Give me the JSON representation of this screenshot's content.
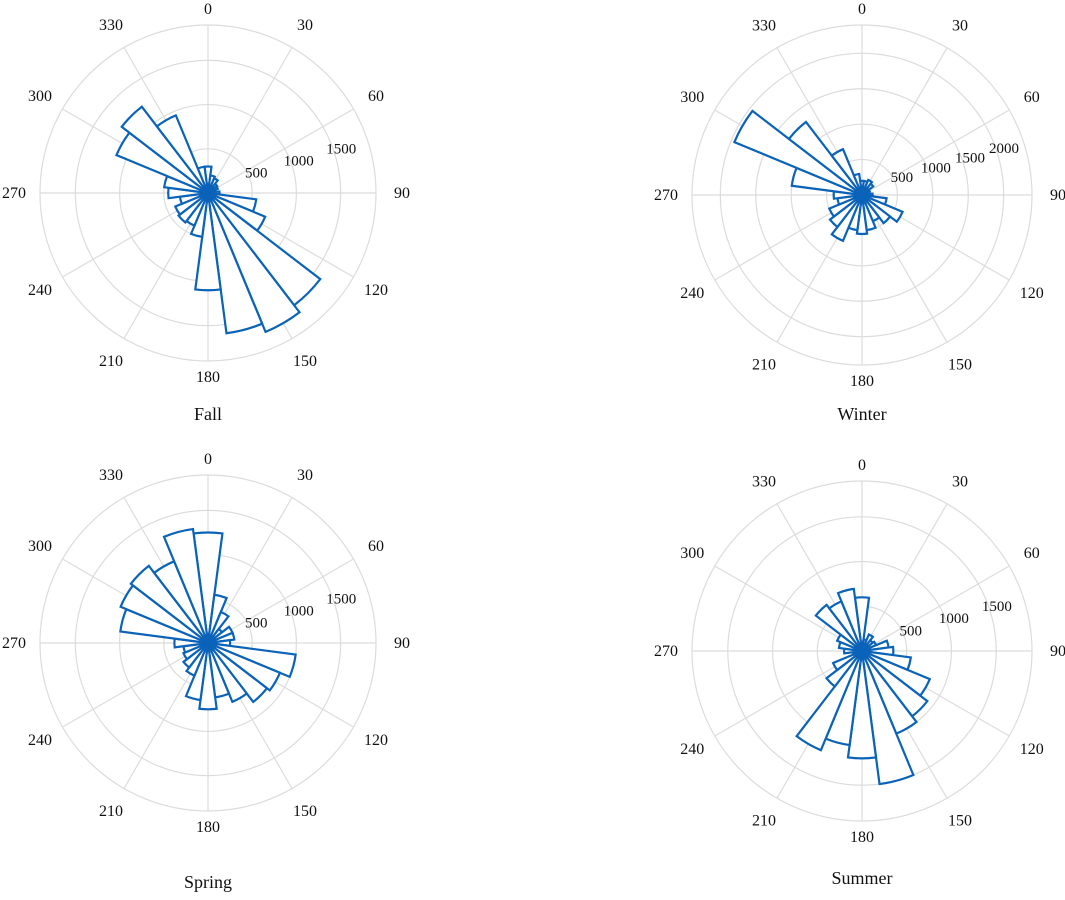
{
  "chart_data": [
    {
      "type": "polar-histogram",
      "title": "Fall",
      "angle_ticks": [
        "0",
        "30",
        "60",
        "90",
        "120",
        "150",
        "180",
        "210",
        "240",
        "270",
        "300",
        "330"
      ],
      "radial_ticks": [
        "500",
        "1000",
        "1500"
      ],
      "rmax": 1900,
      "bin_width_deg": 15,
      "bins_deg": [
        0,
        15,
        30,
        45,
        60,
        75,
        90,
        105,
        120,
        135,
        150,
        165,
        180,
        195,
        210,
        225,
        240,
        255,
        270,
        285,
        300,
        315,
        330,
        345
      ],
      "values": [
        300,
        200,
        180,
        130,
        120,
        80,
        130,
        550,
        700,
        1600,
        1700,
        1600,
        1100,
        500,
        400,
        420,
        400,
        320,
        450,
        500,
        1120,
        1230,
        950,
        300
      ]
    },
    {
      "type": "polar-histogram",
      "title": "Winter",
      "angle_ticks": [
        "0",
        "30",
        "60",
        "90",
        "120",
        "150",
        "180",
        "210",
        "240",
        "270",
        "300",
        "330"
      ],
      "radial_ticks": [
        "500",
        "1000",
        "1500",
        "2000"
      ],
      "rmax": 2400,
      "bin_width_deg": 15,
      "bins_deg": [
        0,
        15,
        30,
        45,
        60,
        75,
        90,
        105,
        120,
        135,
        150,
        165,
        180,
        195,
        210,
        225,
        240,
        255,
        270,
        285,
        300,
        315,
        330,
        345
      ],
      "values": [
        200,
        200,
        230,
        200,
        120,
        100,
        150,
        350,
        620,
        500,
        400,
        500,
        550,
        500,
        700,
        570,
        500,
        350,
        400,
        1000,
        1950,
        1300,
        700,
        300
      ]
    },
    {
      "type": "polar-histogram",
      "title": "Spring",
      "angle_ticks": [
        "0",
        "30",
        "60",
        "90",
        "120",
        "150",
        "180",
        "210",
        "240",
        "270",
        "300",
        "330"
      ],
      "radial_ticks": [
        "500",
        "1000",
        "1500"
      ],
      "rmax": 1900,
      "bin_width_deg": 15,
      "bins_deg": [
        0,
        15,
        30,
        45,
        60,
        75,
        90,
        105,
        120,
        135,
        150,
        165,
        180,
        195,
        210,
        225,
        240,
        255,
        270,
        285,
        300,
        315,
        330,
        345
      ],
      "values": [
        1250,
        550,
        380,
        200,
        300,
        300,
        250,
        1000,
        880,
        840,
        720,
        620,
        750,
        650,
        400,
        350,
        300,
        280,
        380,
        1000,
        1070,
        1100,
        1000,
        1300
      ]
    },
    {
      "type": "polar-histogram",
      "title": "Summer",
      "angle_ticks": [
        "0",
        "30",
        "60",
        "90",
        "120",
        "150",
        "180",
        "210",
        "240",
        "270",
        "300",
        "330"
      ],
      "radial_ticks": [
        "500",
        "1000",
        "1500"
      ],
      "rmax": 1900,
      "bin_width_deg": 15,
      "bins_deg": [
        0,
        15,
        30,
        45,
        60,
        75,
        90,
        105,
        120,
        135,
        150,
        165,
        180,
        195,
        210,
        225,
        240,
        255,
        270,
        285,
        300,
        315,
        330,
        345
      ],
      "values": [
        600,
        130,
        200,
        150,
        170,
        300,
        350,
        550,
        820,
        920,
        1000,
        1500,
        1200,
        1060,
        1200,
        500,
        350,
        100,
        200,
        260,
        300,
        650,
        600,
        700
      ]
    }
  ]
}
